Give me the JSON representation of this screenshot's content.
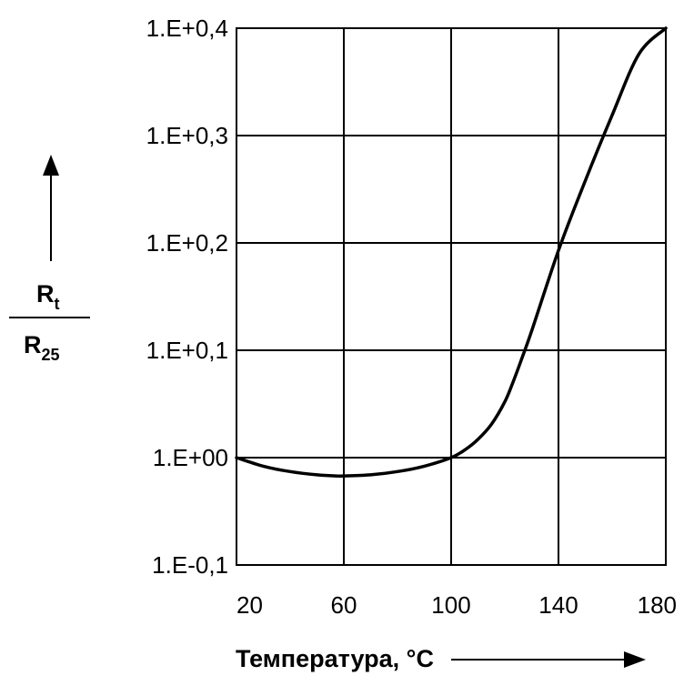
{
  "chart_data": {
    "type": "line",
    "title": "",
    "xlabel": "Температура, °C",
    "ylabel": {
      "numerator_main": "R",
      "numerator_sub": "t",
      "denominator_main": "R",
      "denominator_sub": "25"
    },
    "x_ticks": [
      "20",
      "60",
      "100",
      "140",
      "180"
    ],
    "x_tick_values": [
      20,
      60,
      100,
      140,
      180
    ],
    "xlim": [
      20,
      180
    ],
    "y_ticks": [
      "1.E+0,4",
      "1.E+0,3",
      "1.E+0,2",
      "1.E+0,1",
      "1.E+00",
      "1.E-0,1"
    ],
    "ylim": [
      -1,
      4
    ],
    "grid": true,
    "series": [
      {
        "x": [
          20,
          30,
          40,
          50,
          57,
          60,
          70,
          80,
          90,
          100,
          105,
          110,
          115,
          120,
          123,
          126,
          130,
          140,
          150,
          160,
          170,
          180
        ],
        "y": [
          0.0,
          -0.08,
          -0.13,
          -0.16,
          -0.17,
          -0.17,
          -0.16,
          -0.13,
          -0.08,
          0.0,
          0.07,
          0.17,
          0.31,
          0.52,
          0.7,
          0.9,
          1.18,
          1.93,
          2.58,
          3.19,
          3.76,
          4.0
        ]
      }
    ]
  }
}
